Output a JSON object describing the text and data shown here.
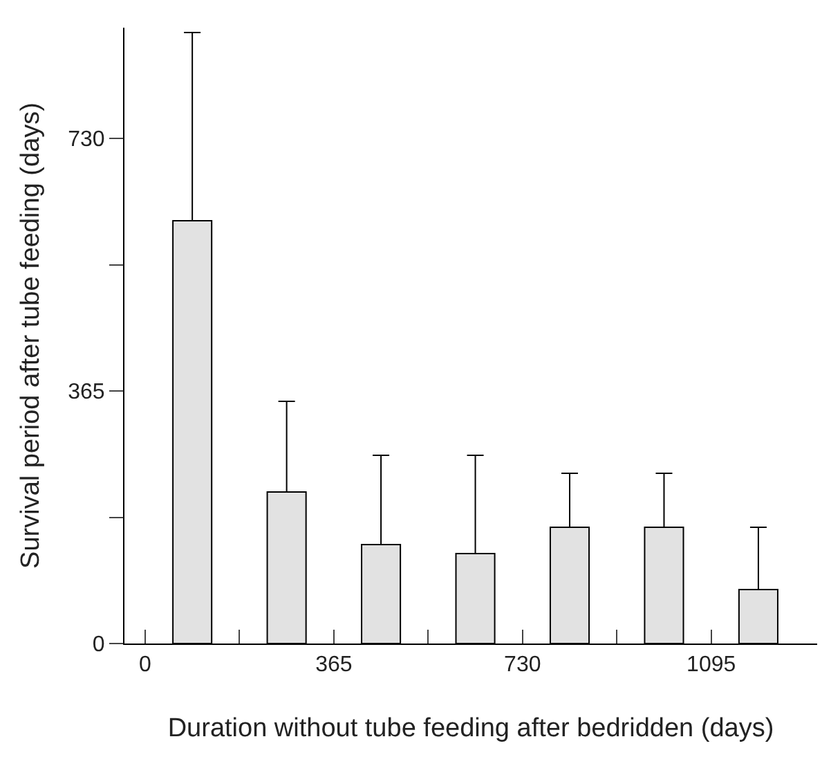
{
  "chart_data": {
    "type": "bar",
    "xlabel": "Duration without tube feeding after bedridden (days)",
    "ylabel": "Survival period after tube feeding (days)",
    "x": [
      91.25,
      273.75,
      456.25,
      638.75,
      821.25,
      1003.75,
      1186.25
    ],
    "values": [
      611,
      219,
      143,
      130,
      168,
      168,
      78
    ],
    "errors": [
      [
        611,
        883
      ],
      [
        219,
        350
      ],
      [
        143,
        272
      ],
      [
        130,
        272
      ],
      [
        168,
        246
      ],
      [
        168,
        246
      ],
      [
        78,
        168
      ]
    ],
    "color": "#e2e2e2",
    "xlim": [
      -40,
      1300
    ],
    "xticks": [
      0,
      {
        "value": 182.5,
        "label": null
      },
      365,
      {
        "value": 547.5,
        "label": null
      },
      730,
      {
        "value": 912.5,
        "label": null
      },
      1095
    ],
    "ylim": [
      0,
      890
    ],
    "yticks": [
      0,
      {
        "value": 182.5,
        "label": null
      },
      365,
      {
        "value": 547.5,
        "label": null
      },
      730
    ]
  }
}
